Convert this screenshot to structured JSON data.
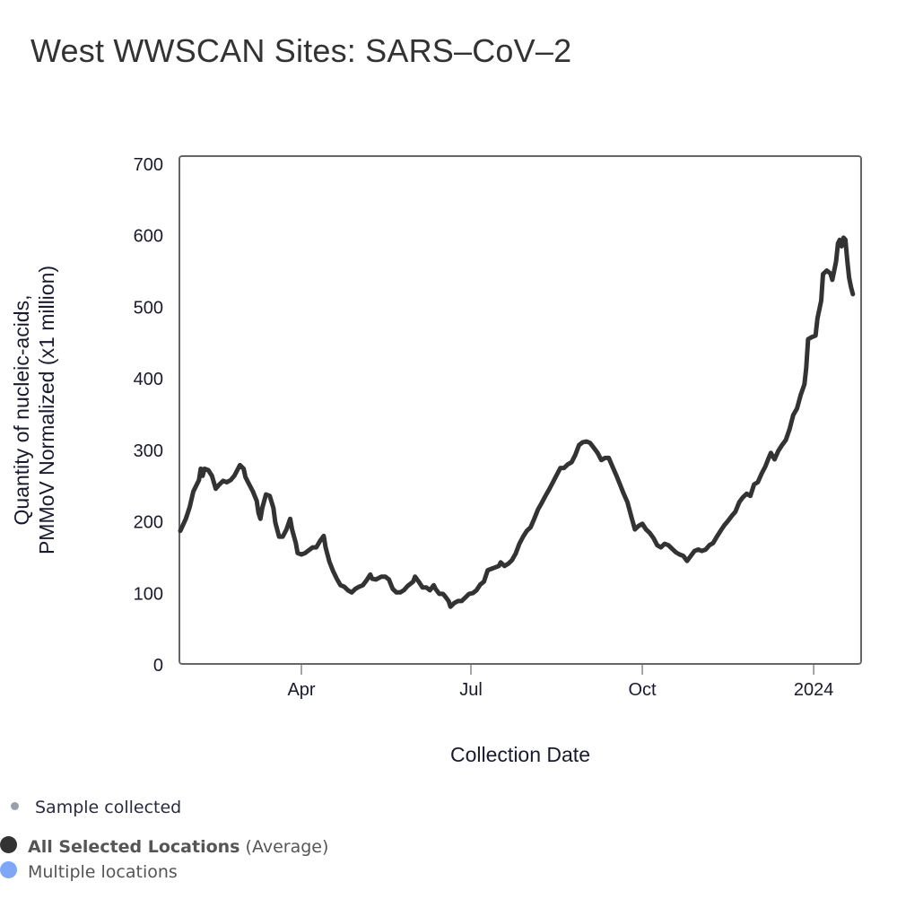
{
  "title": "West WWSCAN Sites: SARS–CoV–2",
  "legend": {
    "sample": "Sample collected",
    "average_bold": "All Selected Locations",
    "average_suffix": "(Average)",
    "multiple": "Multiple locations"
  },
  "colors": {
    "line": "#333333",
    "sample_dot": "#9aa0a8",
    "average_dot": "#333333",
    "multiple_dot": "#7fa7f7",
    "frame": "#666666"
  },
  "chart_data": {
    "type": "line",
    "title": "West WWSCAN Sites: SARS–CoV–2",
    "xlabel": "Collection Date",
    "ylabel_lines": [
      "Quantity of nucleic-acids,",
      "PMMoV Normalized (x1 million)"
    ],
    "ylim": [
      0,
      700
    ],
    "yticks": [
      0,
      100,
      200,
      300,
      400,
      500,
      600,
      700
    ],
    "x_unit": "days since 2023-04-01",
    "xlim": [
      -65,
      296
    ],
    "xticks": [
      {
        "label": "Apr",
        "day": 0
      },
      {
        "label": "Jul",
        "day": 91
      },
      {
        "label": "Oct",
        "day": 183
      },
      {
        "label": "2024",
        "day": 275
      }
    ],
    "grid": false,
    "series": [
      {
        "name": "All Selected Locations (Average)",
        "points": [
          [
            -65,
            186
          ],
          [
            -62,
            203
          ],
          [
            -60,
            219
          ],
          [
            -58,
            241
          ],
          [
            -55,
            257
          ],
          [
            -54,
            273
          ],
          [
            -53,
            263
          ],
          [
            -52,
            273
          ],
          [
            -50,
            271
          ],
          [
            -48,
            263
          ],
          [
            -46,
            245
          ],
          [
            -44,
            251
          ],
          [
            -42,
            256
          ],
          [
            -40,
            254
          ],
          [
            -38,
            257
          ],
          [
            -36,
            263
          ],
          [
            -34,
            273
          ],
          [
            -33,
            278
          ],
          [
            -31,
            273
          ],
          [
            -30,
            261
          ],
          [
            -28,
            251
          ],
          [
            -26,
            241
          ],
          [
            -24,
            228
          ],
          [
            -23,
            211
          ],
          [
            -22,
            203
          ],
          [
            -21,
            218
          ],
          [
            -19,
            237
          ],
          [
            -17,
            235
          ],
          [
            -15,
            218
          ],
          [
            -14,
            198
          ],
          [
            -12,
            178
          ],
          [
            -10,
            178
          ],
          [
            -8,
            188
          ],
          [
            -6,
            203
          ],
          [
            -5,
            188
          ],
          [
            -3,
            169
          ],
          [
            -2,
            155
          ],
          [
            0,
            153
          ],
          [
            2,
            155
          ],
          [
            4,
            159
          ],
          [
            6,
            163
          ],
          [
            8,
            163
          ],
          [
            10,
            172
          ],
          [
            12,
            179
          ],
          [
            13,
            163
          ],
          [
            15,
            143
          ],
          [
            17,
            130
          ],
          [
            19,
            119
          ],
          [
            21,
            110
          ],
          [
            23,
            108
          ],
          [
            25,
            103
          ],
          [
            27,
            100
          ],
          [
            29,
            105
          ],
          [
            31,
            108
          ],
          [
            33,
            110
          ],
          [
            35,
            117
          ],
          [
            37,
            125
          ],
          [
            38,
            119
          ],
          [
            40,
            118
          ],
          [
            43,
            122
          ],
          [
            45,
            122
          ],
          [
            47,
            118
          ],
          [
            49,
            105
          ],
          [
            51,
            100
          ],
          [
            53,
            100
          ],
          [
            55,
            103
          ],
          [
            57,
            109
          ],
          [
            60,
            115
          ],
          [
            61,
            122
          ],
          [
            63,
            115
          ],
          [
            65,
            107
          ],
          [
            67,
            107
          ],
          [
            69,
            103
          ],
          [
            71,
            110
          ],
          [
            72,
            105
          ],
          [
            74,
            98
          ],
          [
            76,
            98
          ],
          [
            77,
            95
          ],
          [
            79,
            88
          ],
          [
            80,
            80
          ],
          [
            82,
            85
          ],
          [
            84,
            88
          ],
          [
            86,
            88
          ],
          [
            88,
            93
          ],
          [
            90,
            98
          ],
          [
            92,
            99
          ],
          [
            94,
            103
          ],
          [
            96,
            111
          ],
          [
            98,
            115
          ],
          [
            100,
            131
          ],
          [
            102,
            133
          ],
          [
            104,
            135
          ],
          [
            106,
            137
          ],
          [
            107,
            142
          ],
          [
            109,
            137
          ],
          [
            111,
            140
          ],
          [
            113,
            145
          ],
          [
            115,
            154
          ],
          [
            117,
            168
          ],
          [
            119,
            178
          ],
          [
            121,
            186
          ],
          [
            123,
            191
          ],
          [
            125,
            203
          ],
          [
            127,
            216
          ],
          [
            129,
            225
          ],
          [
            131,
            235
          ],
          [
            133,
            244
          ],
          [
            135,
            254
          ],
          [
            137,
            264
          ],
          [
            139,
            274
          ],
          [
            141,
            274
          ],
          [
            143,
            279
          ],
          [
            145,
            282
          ],
          [
            147,
            292
          ],
          [
            149,
            306
          ],
          [
            151,
            310
          ],
          [
            153,
            311
          ],
          [
            155,
            309
          ],
          [
            157,
            302
          ],
          [
            159,
            295
          ],
          [
            161,
            285
          ],
          [
            163,
            288
          ],
          [
            165,
            288
          ],
          [
            167,
            276
          ],
          [
            169,
            264
          ],
          [
            171,
            251
          ],
          [
            173,
            238
          ],
          [
            175,
            226
          ],
          [
            177,
            207
          ],
          [
            179,
            188
          ],
          [
            181,
            193
          ],
          [
            183,
            196
          ],
          [
            185,
            188
          ],
          [
            187,
            183
          ],
          [
            189,
            176
          ],
          [
            191,
            166
          ],
          [
            193,
            163
          ],
          [
            195,
            168
          ],
          [
            197,
            166
          ],
          [
            199,
            161
          ],
          [
            201,
            156
          ],
          [
            203,
            153
          ],
          [
            205,
            151
          ],
          [
            207,
            144
          ],
          [
            209,
            151
          ],
          [
            211,
            158
          ],
          [
            213,
            160
          ],
          [
            215,
            158
          ],
          [
            217,
            160
          ],
          [
            219,
            166
          ],
          [
            221,
            169
          ],
          [
            223,
            178
          ],
          [
            225,
            186
          ],
          [
            227,
            194
          ],
          [
            229,
            200
          ],
          [
            231,
            207
          ],
          [
            233,
            213
          ],
          [
            235,
            226
          ],
          [
            237,
            233
          ],
          [
            239,
            238
          ],
          [
            241,
            235
          ],
          [
            242,
            243
          ],
          [
            243,
            251
          ],
          [
            245,
            254
          ],
          [
            247,
            266
          ],
          [
            249,
            276
          ],
          [
            251,
            289
          ],
          [
            252,
            295
          ],
          [
            254,
            286
          ],
          [
            256,
            298
          ],
          [
            258,
            306
          ],
          [
            260,
            313
          ],
          [
            262,
            328
          ],
          [
            264,
            348
          ],
          [
            266,
            357
          ],
          [
            268,
            376
          ],
          [
            270,
            391
          ],
          [
            271,
            414
          ],
          [
            272,
            454
          ],
          [
            274,
            457
          ],
          [
            276,
            459
          ],
          [
            277,
            483
          ],
          [
            279,
            508
          ],
          [
            280,
            545
          ],
          [
            282,
            550
          ],
          [
            284,
            546
          ],
          [
            285,
            537
          ],
          [
            286,
            550
          ],
          [
            287,
            563
          ],
          [
            288,
            588
          ],
          [
            289,
            593
          ],
          [
            290,
            584
          ],
          [
            291,
            596
          ],
          [
            292,
            593
          ],
          [
            293,
            565
          ],
          [
            294,
            540
          ],
          [
            295,
            527
          ],
          [
            296,
            517
          ]
        ]
      }
    ]
  }
}
